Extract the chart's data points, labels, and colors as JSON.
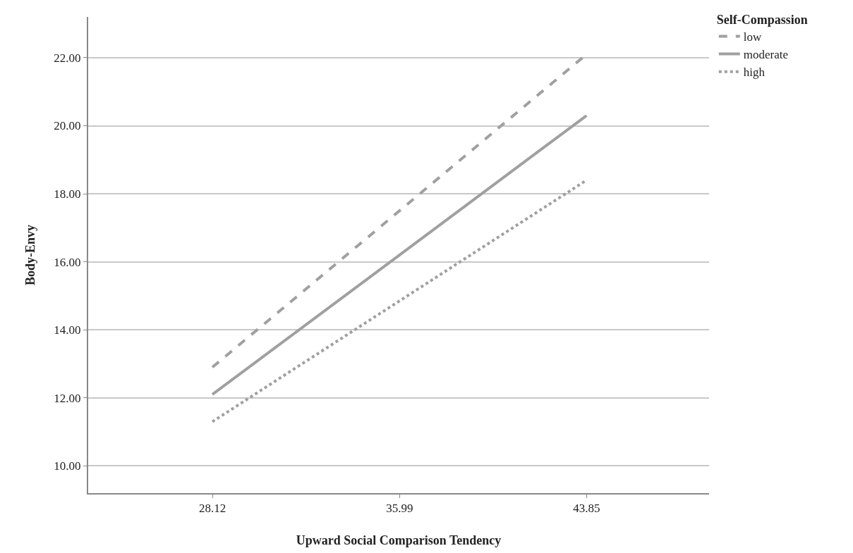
{
  "chart_data": {
    "type": "line",
    "xlabel": "Upward Social Comparison Tendency",
    "ylabel": "Body-Envy",
    "legend_title": "Self-Compassion",
    "x": [
      28.12,
      43.85
    ],
    "series": [
      {
        "name": "low",
        "color": "#a0a0a0",
        "line_style": "dashed",
        "values": [
          12.9,
          22.1
        ]
      },
      {
        "name": "moderate",
        "color": "#a0a0a0",
        "line_style": "solid",
        "values": [
          12.1,
          20.3
        ]
      },
      {
        "name": "high",
        "color": "#a0a0a0",
        "line_style": "dotted",
        "values": [
          11.3,
          18.4
        ]
      }
    ],
    "xlim": [
      22.9,
      49.0
    ],
    "xticks": [
      28.12,
      35.99,
      43.85
    ],
    "ylim": [
      9.2,
      23.2
    ],
    "yticks": [
      {
        "value": 10,
        "label": "10.00"
      },
      {
        "value": 12,
        "label": "12.00"
      },
      {
        "value": 14,
        "label": "14.00"
      },
      {
        "value": 16,
        "label": "16.00"
      },
      {
        "value": 18,
        "label": "18.00"
      },
      {
        "value": 20,
        "label": "20.00"
      },
      {
        "value": 22,
        "label": "22.00"
      }
    ],
    "grid": "y",
    "legend": "top right",
    "marker": "none"
  }
}
